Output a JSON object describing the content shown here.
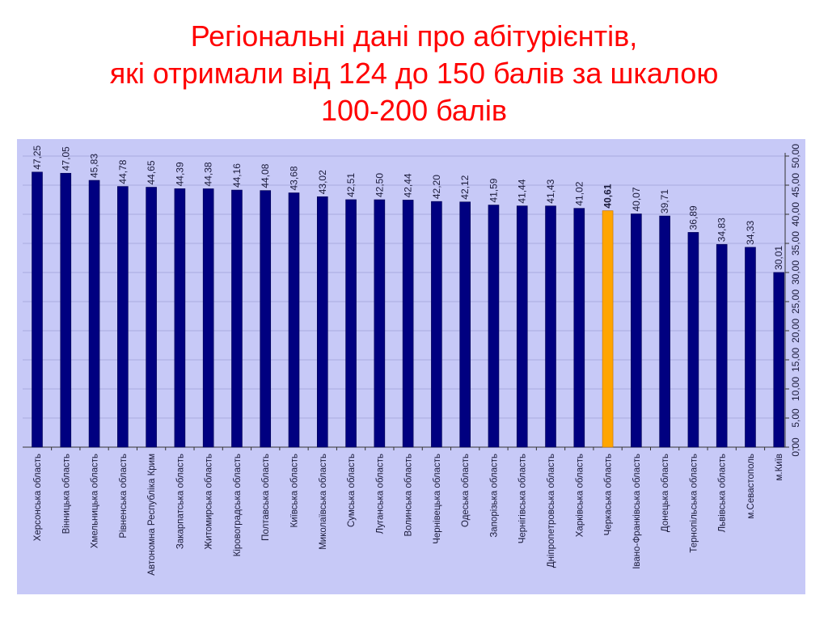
{
  "title": {
    "lines": [
      "Регіональні дані про абітурієнтів,",
      "які отримали від 124 до 150 балів за шкалою",
      "100-200 балів"
    ]
  },
  "colors": {
    "title": "#ff0000",
    "panel_background": "#c7c9f7",
    "bar": "#000080",
    "highlight_bar": "#ffa500"
  },
  "chart_data": {
    "type": "bar",
    "orientation": "vertical",
    "y_axis_side": "right",
    "ylim": [
      0,
      50
    ],
    "yticks": [
      "0,00",
      "5,00",
      "10,00",
      "15,00",
      "20,00",
      "25,00",
      "30,00",
      "35,00",
      "40,00",
      "45,00",
      "50,00"
    ],
    "grid": true,
    "categories": [
      "Херсонська область",
      "Вінницька область",
      "Хмельницька область",
      "Рівненська область",
      "Автономна Республіка Крим",
      "Закарпатська область",
      "Житомирська область",
      "Кіровоградська область",
      "Полтавська область",
      "Київська область",
      "Миколаївська область",
      "Сумська область",
      "Луганська область",
      "Волинська область",
      "Чернівецька область",
      "Одеська область",
      "Запорізька область",
      "Чернігівська область",
      "Дніпропетровська область",
      "Харківська область",
      "Черкаська область",
      "Івано-Франківська область",
      "Донецька область",
      "Тернопільська область",
      "Львівська область",
      "м.Севастополь",
      "м.Київ"
    ],
    "values": [
      47.25,
      47.05,
      45.83,
      44.78,
      44.65,
      44.39,
      44.38,
      44.16,
      44.08,
      43.68,
      43.02,
      42.51,
      42.5,
      42.44,
      42.2,
      42.12,
      41.59,
      41.44,
      41.43,
      41.02,
      40.61,
      40.07,
      39.71,
      36.89,
      34.83,
      34.33,
      30.01
    ],
    "data_labels": [
      "47,25",
      "47,05",
      "45,83",
      "44,78",
      "44,65",
      "44,39",
      "44,38",
      "44,16",
      "44,08",
      "43,68",
      "43,02",
      "42,51",
      "42,50",
      "42,44",
      "42,20",
      "42,12",
      "41,59",
      "41,44",
      "41,43",
      "41,02",
      "40,61",
      "40,07",
      "39,71",
      "36,89",
      "34,83",
      "34,33",
      "30,01"
    ],
    "highlight_category": "Черкаська область"
  }
}
